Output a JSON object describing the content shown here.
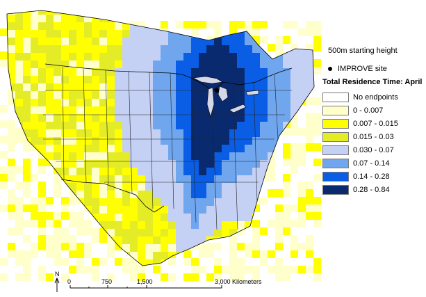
{
  "legend": {
    "starting_height": "500m starting height",
    "site_label": "IMPROVE site",
    "title": "Total Residence Time: April",
    "classes": [
      {
        "label": "No endpoints",
        "color": "#ffffff"
      },
      {
        "label": "0 - 0.007",
        "color": "#ffffcc"
      },
      {
        "label": "0.007 - 0.015",
        "color": "#ffff00"
      },
      {
        "label": "0.015 - 0.03",
        "color": "#e4ec28"
      },
      {
        "label": "0.030 - 0.07",
        "color": "#c5d0f5"
      },
      {
        "label": "0.07 - 0.14",
        "color": "#6fa6ee"
      },
      {
        "label": "0.14 - 0.28",
        "color": "#0a5ee6"
      },
      {
        "label": "0.28 - 0.84",
        "color": "#0a2a70"
      }
    ]
  },
  "map": {
    "north_arrow": "N",
    "scale_ticks": [
      "0",
      "750",
      "1,500",
      "3,000 Kilometers"
    ],
    "site_marker": "IMPROVE site"
  }
}
